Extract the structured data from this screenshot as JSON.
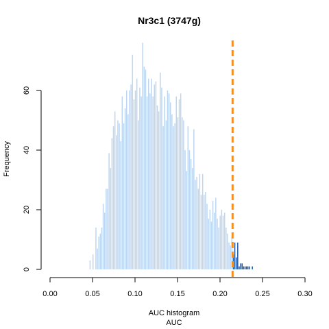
{
  "chart_data": {
    "type": "bar",
    "title": "Nr3c1 (3747g)",
    "xlabel_line1": "AUC histogram",
    "xlabel_line2": "AUC",
    "ylabel": "Frequency",
    "xlim": [
      0.0,
      0.3
    ],
    "ylim": [
      0,
      60
    ],
    "x_ticks": [
      "0.00",
      "0.05",
      "0.10",
      "0.15",
      "0.20",
      "0.25",
      "0.30"
    ],
    "y_ticks": [
      "0",
      "20",
      "40",
      "60"
    ],
    "threshold": 0.2148,
    "colors": {
      "below_threshold": "#bdd7f3",
      "above_threshold": "#1f5aa8",
      "threshold_line": "#f4901e"
    },
    "bins": {
      "start": 0.0465,
      "width": 0.00172,
      "counts": [
        3,
        0,
        5,
        0,
        14,
        7,
        11,
        12,
        14,
        22,
        19,
        27,
        27,
        39,
        34,
        44,
        48,
        53,
        45,
        50,
        49,
        43,
        58,
        49,
        54,
        60,
        52,
        60,
        62,
        72,
        57,
        60,
        64,
        50,
        61,
        58,
        76,
        68,
        67,
        58,
        64,
        59,
        64,
        58,
        62,
        63,
        55,
        53,
        66,
        61,
        48,
        58,
        50,
        60,
        59,
        56,
        52,
        48,
        49,
        58,
        51,
        57,
        59,
        51,
        50,
        40,
        33,
        48,
        40,
        37,
        34,
        47,
        30,
        31,
        27,
        32,
        25,
        32,
        25,
        26,
        22,
        17,
        20,
        16,
        23,
        19,
        24,
        17,
        14,
        18,
        20,
        18,
        19,
        14,
        12,
        9,
        8,
        11,
        5,
        9,
        4,
        9,
        1,
        2,
        2,
        1,
        1,
        1,
        1,
        1,
        0,
        1
      ]
    }
  }
}
